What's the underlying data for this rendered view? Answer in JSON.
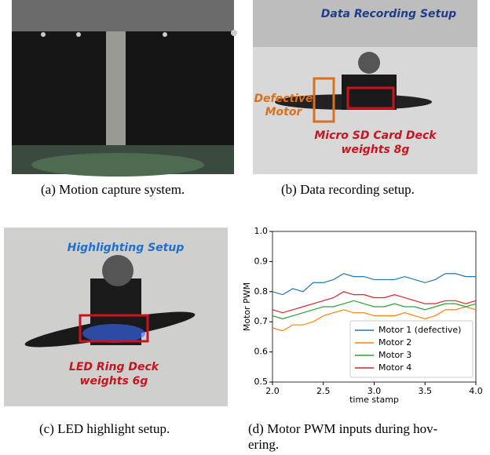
{
  "panels": [
    {
      "caption": "(a) Motion capture system.",
      "labels": []
    },
    {
      "caption": "(b) Data recording setup.",
      "labels": [
        "Data Recording Setup",
        "Defective",
        "Motor",
        "Micro SD Card Deck",
        "weights 8g"
      ]
    },
    {
      "caption": "(c) LED highlight setup.",
      "labels": [
        "Highlighting Setup",
        "LED Ring Deck",
        "weights 6g"
      ]
    },
    {
      "caption_lines": [
        "(d) Motor PWM inputs during hov-",
        "ering."
      ]
    }
  ],
  "chart_data": {
    "type": "line",
    "xlabel": "time stamp",
    "ylabel": "Motor PWM",
    "x": [
      2.0,
      2.1,
      2.2,
      2.3,
      2.4,
      2.5,
      2.6,
      2.7,
      2.8,
      2.9,
      3.0,
      3.1,
      3.2,
      3.3,
      3.4,
      3.5,
      3.6,
      3.7,
      3.8,
      3.9,
      4.0
    ],
    "series": [
      {
        "name": "Motor 1 (defective)",
        "color": "#1f77b4",
        "values": [
          0.8,
          0.79,
          0.81,
          0.8,
          0.83,
          0.83,
          0.84,
          0.86,
          0.85,
          0.85,
          0.84,
          0.84,
          0.84,
          0.85,
          0.84,
          0.83,
          0.84,
          0.86,
          0.86,
          0.85,
          0.85
        ]
      },
      {
        "name": "Motor 2",
        "color": "#ff7f0e",
        "values": [
          0.68,
          0.67,
          0.69,
          0.69,
          0.7,
          0.72,
          0.73,
          0.74,
          0.73,
          0.73,
          0.72,
          0.72,
          0.72,
          0.73,
          0.72,
          0.71,
          0.72,
          0.74,
          0.74,
          0.75,
          0.74
        ]
      },
      {
        "name": "Motor 3",
        "color": "#2ca02c",
        "values": [
          0.72,
          0.71,
          0.72,
          0.73,
          0.74,
          0.75,
          0.75,
          0.76,
          0.77,
          0.76,
          0.75,
          0.75,
          0.76,
          0.75,
          0.75,
          0.74,
          0.75,
          0.76,
          0.76,
          0.75,
          0.76
        ]
      },
      {
        "name": "Motor 4",
        "color": "#d62728",
        "values": [
          0.74,
          0.73,
          0.74,
          0.75,
          0.76,
          0.77,
          0.78,
          0.8,
          0.79,
          0.79,
          0.78,
          0.78,
          0.79,
          0.78,
          0.77,
          0.76,
          0.76,
          0.77,
          0.77,
          0.76,
          0.77
        ]
      }
    ],
    "xlim": [
      2.0,
      4.0
    ],
    "xticks": [
      {
        "value": 2,
        "label": "2.0"
      },
      2.5,
      {
        "value": 3,
        "label": "3.0"
      },
      3.5,
      {
        "value": 4,
        "label": "4.0"
      }
    ],
    "ylim": [
      0.5,
      1.0
    ],
    "yticks": [
      0.5,
      0.6,
      0.7,
      0.8,
      0.9,
      {
        "value": 1,
        "label": "1.0"
      }
    ],
    "grid": false,
    "legend": "lower right"
  }
}
